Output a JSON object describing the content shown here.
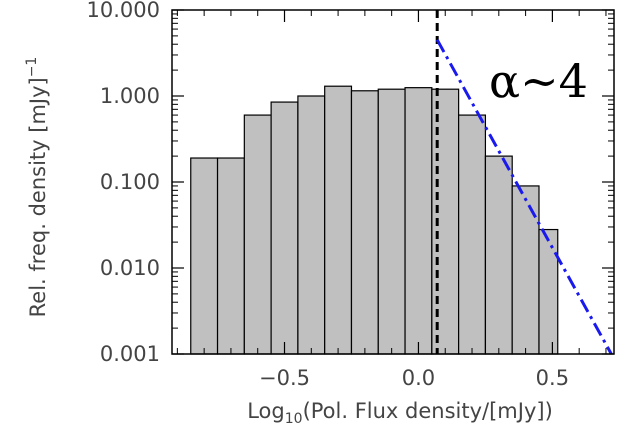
{
  "chart_data": {
    "type": "bar",
    "ylog": true,
    "bin_edges": [
      -0.85,
      -0.75,
      -0.65,
      -0.55,
      -0.45,
      -0.35,
      -0.25,
      -0.15,
      -0.05,
      0.05,
      0.15,
      0.25,
      0.35,
      0.45,
      0.52
    ],
    "values": [
      0.19,
      0.19,
      0.6,
      0.85,
      1.0,
      1.3,
      1.15,
      1.2,
      1.25,
      1.2,
      0.6,
      0.2,
      0.09,
      0.028
    ],
    "xlim": [
      -0.92,
      0.73
    ],
    "ylim": [
      0.001,
      10.0
    ],
    "xticks": [
      -0.5,
      0.0,
      0.5
    ],
    "xtick_labels": [
      "−0.5",
      "0.0",
      "0.5"
    ],
    "yticks": [
      0.001,
      0.01,
      0.1,
      1.0,
      10.0
    ],
    "ytick_labels": [
      "0.001",
      "0.010",
      "0.100",
      "1.000",
      "10.000"
    ],
    "xlabel": {
      "prefix": "Log",
      "subscript": "10",
      "rest": "(Pol. Flux density/[mJy])"
    },
    "ylabel": {
      "main": "Rel. freq. density  [mJy]",
      "superscript": "−1"
    },
    "vline": {
      "x": 0.07,
      "style": "dashed",
      "color": "#000000"
    },
    "fit_line": {
      "x": [
        0.07,
        0.72
      ],
      "y": [
        4.5,
        0.001
      ],
      "style": "dash-dot",
      "color": "#1a1aee"
    },
    "annotation": "α~4",
    "bar_color": "#c0c0c0"
  }
}
